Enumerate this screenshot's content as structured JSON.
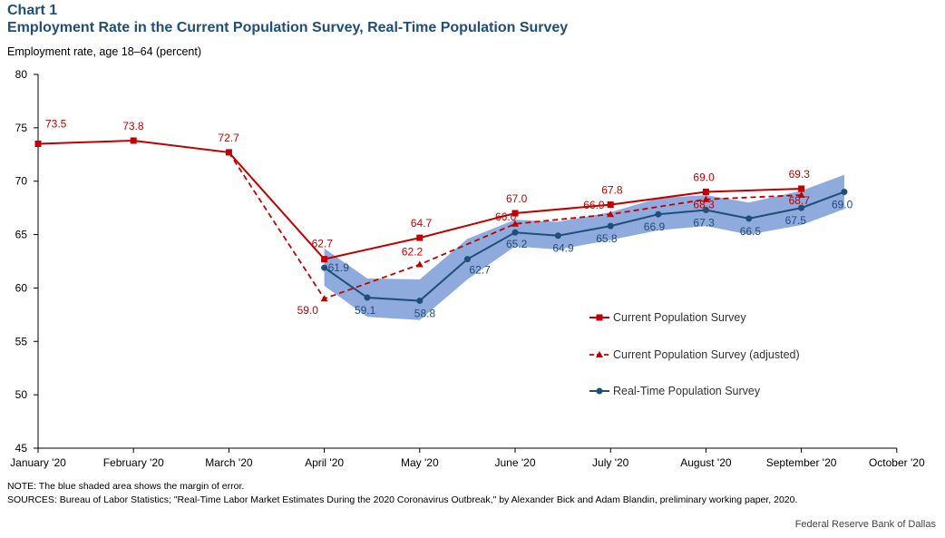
{
  "header": {
    "chart_number": "Chart 1",
    "title": "Employment Rate in the Current Population Survey, Real-Time Population Survey"
  },
  "footer": {
    "note": "NOTE: The blue shaded area shows the margin of error.",
    "sources": "SOURCES: Bureau of Labor Statistics; \"Real-Time Labor Market Estimates During the 2020 Coronavirus Outbreak,\" by Alexander Bick and Adam Blandin, preliminary working paper, 2020.",
    "credit": "Federal Reserve Bank of Dallas"
  },
  "colors": {
    "cps": "#c00000",
    "rps": "#1f4e79",
    "band": "#8faadc",
    "axis": "#000000"
  },
  "chart_data": {
    "type": "line",
    "ylabel": "Employment rate, age 18–64 (percent)",
    "ylim": [
      45,
      80
    ],
    "yticks": [
      45,
      50,
      55,
      60,
      65,
      70,
      75,
      80
    ],
    "xlim": [
      0,
      9
    ],
    "xticks": [
      {
        "x": 0,
        "label": "January '20"
      },
      {
        "x": 1,
        "label": "February '20"
      },
      {
        "x": 2,
        "label": "March '20"
      },
      {
        "x": 3,
        "label": "April '20"
      },
      {
        "x": 4,
        "label": "May '20"
      },
      {
        "x": 5,
        "label": "June '20"
      },
      {
        "x": 6,
        "label": "July '20"
      },
      {
        "x": 7,
        "label": "August '20"
      },
      {
        "x": 8,
        "label": "September '20"
      },
      {
        "x": 9,
        "label": "October '20"
      }
    ],
    "grid": false,
    "legend_position": "right",
    "series": [
      {
        "name": "Current Population Survey",
        "style": "solid-square",
        "points": [
          {
            "x": 0,
            "y": 73.5,
            "label": "73.5"
          },
          {
            "x": 1,
            "y": 73.8,
            "label": "73.8"
          },
          {
            "x": 2,
            "y": 72.7,
            "label": "72.7"
          },
          {
            "x": 3,
            "y": 62.7,
            "label": "62.7"
          },
          {
            "x": 4,
            "y": 64.7,
            "label": "64.7"
          },
          {
            "x": 5,
            "y": 67.0,
            "label": "67.0"
          },
          {
            "x": 6,
            "y": 67.8,
            "label": "67.8"
          },
          {
            "x": 7,
            "y": 69.0,
            "label": "69.0"
          },
          {
            "x": 8,
            "y": 69.3,
            "label": "69.3"
          }
        ]
      },
      {
        "name": "Current Population Survey (adjusted)",
        "style": "dashed-triangle",
        "points": [
          {
            "x": 2,
            "y": 72.7,
            "label": ""
          },
          {
            "x": 3,
            "y": 59.0,
            "label": "59.0"
          },
          {
            "x": 4,
            "y": 62.2,
            "label": "62.2"
          },
          {
            "x": 5,
            "y": 66.0,
            "label": "66.0"
          },
          {
            "x": 6,
            "y": 66.9,
            "label": "66.9"
          },
          {
            "x": 7,
            "y": 68.3,
            "label": "68.3"
          },
          {
            "x": 8,
            "y": 68.7,
            "label": "68.7"
          }
        ]
      },
      {
        "name": "Real-Time Population Survey",
        "style": "solid-circle",
        "points": [
          {
            "x": 3,
            "y": 61.9,
            "label": "61.9"
          },
          {
            "x": 3.45,
            "y": 59.1,
            "label": "59.1"
          },
          {
            "x": 4,
            "y": 58.8,
            "label": "58.8"
          },
          {
            "x": 4.5,
            "y": 62.7,
            "label": "62.7"
          },
          {
            "x": 5,
            "y": 65.2,
            "label": "65.2"
          },
          {
            "x": 5.45,
            "y": 64.9,
            "label": "64.9"
          },
          {
            "x": 6,
            "y": 65.8,
            "label": "65.8"
          },
          {
            "x": 6.5,
            "y": 66.9,
            "label": "66.9"
          },
          {
            "x": 7,
            "y": 67.3,
            "label": "67.3"
          },
          {
            "x": 7.45,
            "y": 66.5,
            "label": "66.5"
          },
          {
            "x": 8,
            "y": 67.5,
            "label": "67.5"
          },
          {
            "x": 8.45,
            "y": 69.0,
            "label": "69.0"
          }
        ]
      }
    ],
    "margin_of_error_band": {
      "x": [
        3,
        3.45,
        4,
        4.5,
        5,
        5.45,
        6,
        6.5,
        7,
        7.45,
        8,
        8.45
      ],
      "upper": [
        63.7,
        60.9,
        60.8,
        64.6,
        66.4,
        66.2,
        67.1,
        68.4,
        68.7,
        68.0,
        69.1,
        70.6
      ],
      "lower": [
        60.2,
        57.3,
        57.0,
        60.8,
        63.9,
        63.6,
        64.5,
        65.4,
        65.8,
        65.0,
        65.9,
        67.4
      ]
    }
  }
}
